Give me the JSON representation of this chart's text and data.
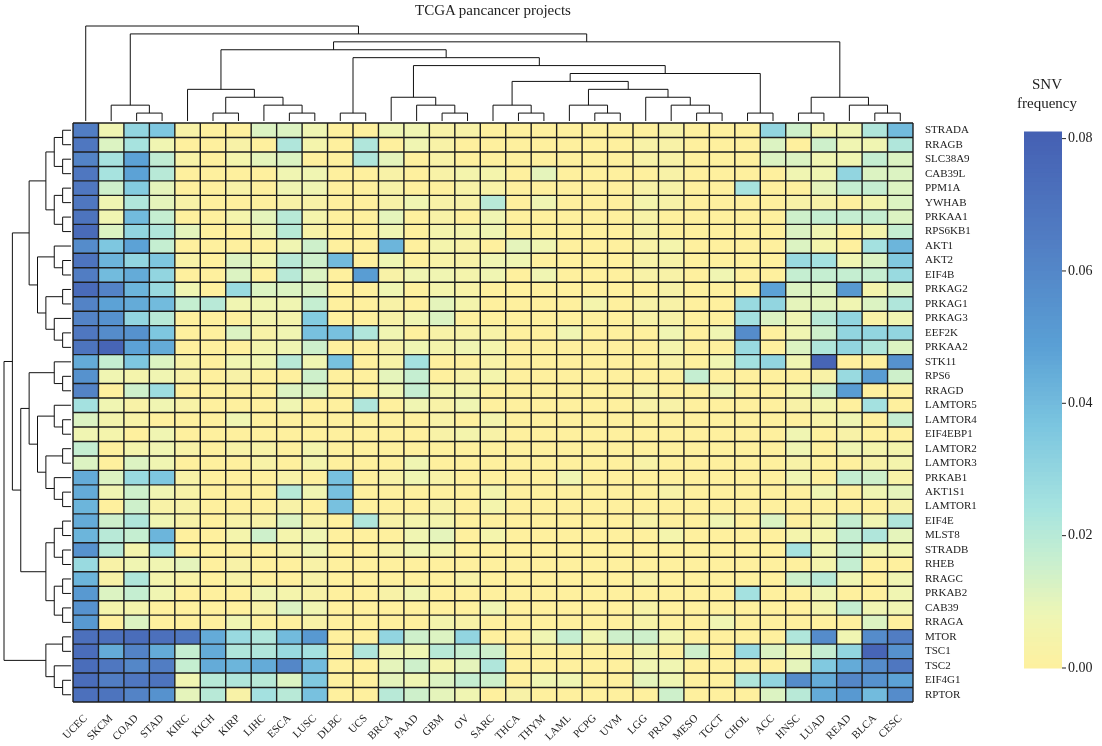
{
  "chart_data": {
    "type": "heatmap",
    "title": "TCGA pancancer projects",
    "clabel": "SNV frequency",
    "categories": [
      "UCEC",
      "SKCM",
      "COAD",
      "STAD",
      "KIRC",
      "KICH",
      "KIRP",
      "LIHC",
      "ESCA",
      "LUSC",
      "DLBC",
      "UCS",
      "BRCA",
      "PAAD",
      "GBM",
      "OV",
      "SARC",
      "THCA",
      "THYM",
      "LAML",
      "PCPG",
      "UVM",
      "LGG",
      "PRAD",
      "MESO",
      "TGCT",
      "CHOL",
      "ACC",
      "HNSC",
      "LUAD",
      "READ",
      "BLCA",
      "CESC"
    ],
    "y_categories": [
      "STRADA",
      "RRAGB",
      "SLC38A9",
      "CAB39L",
      "PPM1A",
      "YWHAB",
      "PRKAA1",
      "RPS6KB1",
      "AKT1",
      "AKT2",
      "EIF4B",
      "PRKAG2",
      "PRKAG1",
      "PRKAG3",
      "EEF2K",
      "PRKAA2",
      "STK11",
      "RPS6",
      "RRAGD",
      "LAMTOR5",
      "LAMTOR4",
      "EIF4EBP1",
      "LAMTOR2",
      "LAMTOR3",
      "PRKAB1",
      "AKT1S1",
      "LAMTOR1",
      "EIF4E",
      "MLST8",
      "STRADB",
      "RHEB",
      "RRAGC",
      "PRKAB2",
      "CAB39",
      "RRAGA",
      "MTOR",
      "TSC1",
      "TSC2",
      "EIF4G1",
      "RPTOR"
    ],
    "cells": [
      [
        0.065,
        0.007,
        0.03,
        0.036,
        0.003,
        0,
        0,
        0.012,
        0.012,
        0.007,
        0,
        0,
        0.007,
        0.007,
        0.003,
        0.003,
        0,
        0,
        0,
        0,
        0,
        0,
        0,
        0.003,
        0,
        0,
        0,
        0.03,
        0.015,
        0.005,
        0.007,
        0.022,
        0.04
      ],
      [
        0.068,
        0.012,
        0.024,
        0.007,
        0,
        0,
        0.003,
        0,
        0.022,
        0.005,
        0,
        0.022,
        0,
        0.007,
        0.003,
        0,
        0,
        0,
        0,
        0,
        0,
        0,
        0.003,
        0.003,
        0,
        0,
        0,
        0.012,
        0,
        0.015,
        0.007,
        0.007,
        0.022
      ],
      [
        0.062,
        0.024,
        0.048,
        0.018,
        0.003,
        0,
        0.005,
        0.01,
        0.012,
        0,
        0,
        0.022,
        0.01,
        0,
        0.003,
        0,
        0,
        0,
        0,
        0,
        0,
        0,
        0.003,
        0.003,
        0,
        0,
        0,
        0.012,
        0.012,
        0.007,
        0.007,
        0.017,
        0.012
      ],
      [
        0.068,
        0.024,
        0.048,
        0.02,
        0,
        0,
        0,
        0,
        0.007,
        0.007,
        0,
        0,
        0.003,
        0,
        0.003,
        0.005,
        0.005,
        0,
        0.01,
        0,
        0,
        0,
        0,
        0.003,
        0,
        0,
        0,
        0,
        0.007,
        0.007,
        0.03,
        0.012,
        0.012
      ],
      [
        0.068,
        0.015,
        0.034,
        0.01,
        0,
        0,
        0.003,
        0,
        0.007,
        0.007,
        0,
        0,
        0.003,
        0,
        0,
        0.003,
        0.003,
        0,
        0,
        0,
        0,
        0,
        0.003,
        0.003,
        0,
        0,
        0.024,
        0,
        0,
        0.01,
        0.017,
        0.017,
        0.012
      ],
      [
        0.068,
        0.007,
        0.022,
        0.01,
        0.003,
        0,
        0,
        0,
        0.003,
        0.003,
        0,
        0,
        0.003,
        0.007,
        0.003,
        0.003,
        0.02,
        0,
        0.007,
        0,
        0,
        0,
        0.005,
        0.003,
        0,
        0,
        0,
        0,
        0.003,
        0.003,
        0,
        0.005,
        0.012
      ],
      [
        0.07,
        0.007,
        0.04,
        0.017,
        0,
        0,
        0.005,
        0.01,
        0.02,
        0.005,
        0,
        0,
        0.01,
        0,
        0.003,
        0,
        0.007,
        0,
        0,
        0,
        0,
        0,
        0.003,
        0,
        0,
        0,
        0,
        0,
        0.015,
        0.017,
        0.017,
        0.017,
        0.012
      ],
      [
        0.075,
        0.012,
        0.03,
        0.022,
        0.01,
        0,
        0,
        0.007,
        0.02,
        0.003,
        0,
        0,
        0.007,
        0,
        0.005,
        0.005,
        0.007,
        0,
        0,
        0,
        0,
        0,
        0.003,
        0,
        0,
        0,
        0,
        0,
        0.012,
        0.007,
        0,
        0.005,
        0.017
      ],
      [
        0.058,
        0.036,
        0.048,
        0.017,
        0,
        0,
        0,
        0,
        0.007,
        0.015,
        0,
        0,
        0.042,
        0,
        0.005,
        0.003,
        0,
        0.01,
        0.007,
        0,
        0,
        0,
        0.003,
        0.005,
        0,
        0,
        0,
        0,
        0.012,
        0.005,
        0,
        0.025,
        0.042
      ],
      [
        0.07,
        0.042,
        0.03,
        0.036,
        0.003,
        0,
        0.012,
        0.007,
        0.02,
        0.015,
        0.04,
        0,
        0.007,
        0,
        0.003,
        0.003,
        0.007,
        0.007,
        0,
        0,
        0,
        0,
        0.003,
        0.003,
        0,
        0,
        0,
        0,
        0.028,
        0.025,
        0.007,
        0.012,
        0.035
      ],
      [
        0.065,
        0.04,
        0.045,
        0.03,
        0,
        0,
        0.012,
        0,
        0.02,
        0.012,
        0,
        0.05,
        0.003,
        0.007,
        0.007,
        0.005,
        0.007,
        0,
        0.007,
        0,
        0,
        0,
        0.003,
        0.003,
        0,
        0.007,
        0,
        0,
        0.017,
        0.017,
        0.017,
        0.017,
        0.028
      ],
      [
        0.075,
        0.062,
        0.042,
        0.028,
        0.007,
        0,
        0.028,
        0.012,
        0.012,
        0.012,
        0,
        0,
        0.007,
        0,
        0.005,
        0.003,
        0,
        0,
        0,
        0,
        0,
        0,
        0,
        0.003,
        0,
        0,
        0,
        0.048,
        0.012,
        0.012,
        0.052,
        0.005,
        0.012
      ],
      [
        0.062,
        0.048,
        0.045,
        0.04,
        0.017,
        0.02,
        0.007,
        0.007,
        0.007,
        0.017,
        0,
        0,
        0.003,
        0,
        0.01,
        0.005,
        0,
        0,
        0,
        0,
        0.005,
        0,
        0.003,
        0.003,
        0,
        0,
        0.028,
        0.03,
        0.01,
        0.01,
        0.007,
        0.012,
        0.022
      ],
      [
        0.062,
        0.055,
        0.03,
        0.02,
        0,
        0,
        0,
        0.005,
        0.005,
        0.034,
        0,
        0,
        0.003,
        0.007,
        0.012,
        0,
        0,
        0,
        0,
        0,
        0,
        0,
        0.003,
        0.003,
        0,
        0,
        0.025,
        0.012,
        0.007,
        0.02,
        0.03,
        0.003,
        0.007
      ],
      [
        0.068,
        0.058,
        0.055,
        0.036,
        0,
        0,
        0.012,
        0.003,
        0.007,
        0.038,
        0.038,
        0.022,
        0.007,
        0,
        0.003,
        0.003,
        0.003,
        0,
        0,
        0.007,
        0,
        0,
        0,
        0.007,
        0,
        0.007,
        0.058,
        0,
        0.007,
        0.015,
        0.03,
        0.03,
        0.03
      ],
      [
        0.07,
        0.078,
        0.048,
        0.045,
        0,
        0,
        0,
        0.005,
        0.007,
        0.015,
        0,
        0,
        0.003,
        0.007,
        0.005,
        0.007,
        0.005,
        0,
        0,
        0,
        0,
        0,
        0,
        0.005,
        0,
        0,
        0.028,
        0,
        0.012,
        0.022,
        0.03,
        0.022,
        0.012
      ],
      [
        0.045,
        0.017,
        0.036,
        0.012,
        0.003,
        0,
        0.007,
        0.007,
        0.02,
        0.007,
        0.038,
        0,
        0.003,
        0.025,
        0,
        0,
        0.003,
        0,
        0,
        0,
        0,
        0,
        0,
        0.003,
        0,
        0.007,
        0.025,
        0.03,
        0.007,
        0.078,
        0,
        0,
        0.055
      ],
      [
        0.055,
        0.007,
        0.005,
        0.007,
        0.003,
        0,
        0.003,
        0,
        0,
        0.015,
        0,
        0,
        0.01,
        0.017,
        0,
        0.003,
        0.005,
        0,
        0,
        0,
        0,
        0,
        0,
        0,
        0.017,
        0,
        0,
        0,
        0,
        0.003,
        0.028,
        0.05,
        0.015
      ],
      [
        0.062,
        0,
        0.015,
        0.027,
        0,
        0,
        0,
        0,
        0.012,
        0.012,
        0,
        0,
        0.007,
        0.017,
        0.005,
        0.005,
        0,
        0,
        0,
        0,
        0,
        0,
        0.003,
        0,
        0,
        0.007,
        0,
        0,
        0.005,
        0.015,
        0.05,
        0,
        0
      ],
      [
        0.025,
        0.007,
        0.003,
        0.007,
        0.003,
        0,
        0,
        0,
        0.007,
        0,
        0,
        0.022,
        0,
        0.007,
        0.003,
        0.007,
        0,
        0,
        0,
        0,
        0,
        0,
        0.003,
        0.003,
        0,
        0,
        0,
        0,
        0.003,
        0.005,
        0,
        0.025,
        0
      ],
      [
        0.012,
        0.005,
        0.003,
        0,
        0,
        0,
        0.007,
        0,
        0,
        0,
        0,
        0,
        0,
        0,
        0.003,
        0,
        0.005,
        0,
        0,
        0,
        0,
        0,
        0,
        0,
        0,
        0,
        0,
        0,
        0,
        0.003,
        0.007,
        0,
        0.017
      ],
      [
        0.007,
        0.005,
        0,
        0.007,
        0,
        0,
        0,
        0,
        0,
        0,
        0,
        0,
        0,
        0,
        0.003,
        0.005,
        0.003,
        0,
        0,
        0,
        0,
        0,
        0,
        0,
        0,
        0,
        0,
        0,
        0.007,
        0,
        0.003,
        0,
        0
      ],
      [
        0.017,
        0,
        0.005,
        0.007,
        0.003,
        0,
        0.003,
        0.003,
        0,
        0.005,
        0,
        0,
        0,
        0,
        0,
        0,
        0,
        0,
        0,
        0,
        0,
        0,
        0,
        0,
        0,
        0,
        0,
        0,
        0.007,
        0,
        0.007,
        0.005,
        0.005
      ],
      [
        0.012,
        0,
        0.012,
        0.007,
        0,
        0,
        0,
        0.003,
        0,
        0.005,
        0,
        0,
        0,
        0.007,
        0,
        0,
        0,
        0,
        0,
        0,
        0,
        0,
        0.003,
        0,
        0,
        0,
        0,
        0,
        0.003,
        0,
        0,
        0.003,
        0.005
      ],
      [
        0.045,
        0.012,
        0.028,
        0.036,
        0.003,
        0,
        0,
        0,
        0.003,
        0,
        0.038,
        0,
        0.003,
        0.007,
        0.003,
        0,
        0,
        0,
        0,
        0.007,
        0,
        0,
        0,
        0,
        0,
        0,
        0,
        0,
        0.007,
        0,
        0.017,
        0.015,
        0.003
      ],
      [
        0.045,
        0.007,
        0.015,
        0.007,
        0.003,
        0,
        0,
        0,
        0.02,
        0.007,
        0.038,
        0,
        0,
        0,
        0,
        0,
        0.005,
        0,
        0,
        0,
        0,
        0,
        0,
        0.003,
        0,
        0,
        0,
        0,
        0,
        0.007,
        0,
        0.007,
        0.01
      ],
      [
        0.042,
        0,
        0.015,
        0.003,
        0.003,
        0,
        0,
        0,
        0.003,
        0,
        0.038,
        0,
        0,
        0,
        0.003,
        0,
        0.005,
        0,
        0,
        0,
        0,
        0,
        0,
        0,
        0,
        0,
        0,
        0,
        0,
        0,
        0,
        0,
        0.003
      ],
      [
        0.045,
        0.015,
        0.022,
        0.007,
        0.003,
        0,
        0.003,
        0.003,
        0.012,
        0.003,
        0,
        0.022,
        0.003,
        0.005,
        0.005,
        0,
        0,
        0,
        0,
        0,
        0,
        0,
        0.003,
        0,
        0,
        0.007,
        0,
        0.012,
        0,
        0.005,
        0.017,
        0.007,
        0.022
      ],
      [
        0.042,
        0.02,
        0.017,
        0.042,
        0,
        0,
        0.005,
        0.015,
        0.005,
        0.007,
        0,
        0,
        0,
        0.007,
        0.01,
        0,
        0.005,
        0,
        0,
        0,
        0,
        0,
        0,
        0.005,
        0,
        0,
        0,
        0,
        0.005,
        0.005,
        0.017,
        0.022,
        0.01
      ],
      [
        0.055,
        0.02,
        0.005,
        0.025,
        0,
        0,
        0,
        0,
        0.003,
        0.007,
        0,
        0,
        0.003,
        0.007,
        0.005,
        0,
        0,
        0,
        0,
        0,
        0,
        0,
        0,
        0,
        0,
        0,
        0,
        0,
        0.024,
        0.007,
        0.017,
        0.007,
        0.007
      ],
      [
        0.028,
        0.003,
        0.007,
        0.007,
        0.01,
        0,
        0.003,
        0,
        0,
        0.003,
        0,
        0,
        0,
        0,
        0,
        0,
        0,
        0,
        0,
        0,
        0,
        0,
        0,
        0,
        0,
        0,
        0,
        0,
        0,
        0.005,
        0.017,
        0,
        0
      ],
      [
        0.042,
        0.003,
        0.022,
        0.005,
        0.003,
        0,
        0.003,
        0,
        0,
        0.003,
        0,
        0,
        0,
        0,
        0,
        0.003,
        0,
        0,
        0,
        0,
        0,
        0,
        0.003,
        0,
        0,
        0,
        0,
        0,
        0.015,
        0.02,
        0.007,
        0,
        0.007
      ],
      [
        0.052,
        0.012,
        0.017,
        0.007,
        0,
        0,
        0,
        0.007,
        0.005,
        0.003,
        0,
        0,
        0.003,
        0.007,
        0,
        0,
        0,
        0,
        0,
        0,
        0,
        0,
        0,
        0,
        0,
        0,
        0.025,
        0,
        0,
        0.007,
        0,
        0,
        0.007
      ],
      [
        0.055,
        0.005,
        0.005,
        0,
        0,
        0,
        0,
        0.003,
        0.012,
        0.007,
        0,
        0,
        0,
        0,
        0,
        0,
        0.007,
        0,
        0,
        0,
        0,
        0,
        0.003,
        0,
        0,
        0,
        0,
        0,
        0,
        0.005,
        0.017,
        0.007,
        0.007
      ],
      [
        0.052,
        0,
        0.012,
        0,
        0,
        0,
        0.007,
        0,
        0,
        0.003,
        0,
        0,
        0,
        0,
        0.005,
        0.003,
        0,
        0,
        0,
        0,
        0,
        0,
        0.003,
        0,
        0,
        0.007,
        0,
        0,
        0,
        0,
        0,
        0.012,
        0
      ],
      [
        0.072,
        0.072,
        0.074,
        0.072,
        0.068,
        0.045,
        0.028,
        0.022,
        0.04,
        0.052,
        0,
        0,
        0.03,
        0.015,
        0.012,
        0.03,
        0,
        0,
        0.007,
        0.017,
        0.007,
        0.015,
        0.015,
        0.007,
        0,
        0,
        0,
        0,
        0.022,
        0.058,
        0.007,
        0.058,
        0.065
      ],
      [
        0.074,
        0.045,
        0.062,
        0.045,
        0.017,
        0.045,
        0.022,
        0.022,
        0.028,
        0.025,
        0,
        0.022,
        0.007,
        0.007,
        0.02,
        0.017,
        0.015,
        0,
        0,
        0,
        0,
        0,
        0.005,
        0,
        0.015,
        0,
        0.028,
        0.012,
        0.007,
        0.017,
        0.03,
        0.078,
        0.055
      ],
      [
        0.074,
        0.068,
        0.06,
        0.065,
        0.017,
        0.045,
        0.042,
        0.045,
        0.06,
        0.04,
        0,
        0,
        0.01,
        0.015,
        0.005,
        0.01,
        0.022,
        0,
        0,
        0,
        0,
        0,
        0.007,
        0.007,
        0,
        0,
        0,
        0,
        0.01,
        0.035,
        0.045,
        0.058,
        0.068
      ],
      [
        0.074,
        0.065,
        0.068,
        0.07,
        0.007,
        0.02,
        0.022,
        0.02,
        0.012,
        0.035,
        0,
        0,
        0.01,
        0.007,
        0.012,
        0.017,
        0.015,
        0,
        0.007,
        0.007,
        0,
        0,
        0.01,
        0.007,
        0,
        0,
        0.022,
        0.03,
        0.058,
        0.045,
        0.06,
        0.055,
        0.048
      ],
      [
        0.072,
        0.07,
        0.062,
        0.055,
        0.01,
        0.02,
        0.003,
        0.025,
        0.02,
        0.038,
        0,
        0,
        0.02,
        0.015,
        0.01,
        0.007,
        0,
        0.003,
        0,
        0,
        0,
        0,
        0,
        0.015,
        0,
        0,
        0,
        0.012,
        0.02,
        0.045,
        0.052,
        0.04,
        0.058
      ]
    ],
    "clim": [
      0,
      0.081
    ],
    "cticks": [
      {
        "value": 0,
        "label": "0.00"
      },
      {
        "value": 0.02,
        "label": "0.02"
      },
      {
        "value": 0.04,
        "label": "0.04"
      },
      {
        "value": 0.06,
        "label": "0.06"
      },
      {
        "value": 0.08,
        "label": "0.08"
      }
    ]
  }
}
